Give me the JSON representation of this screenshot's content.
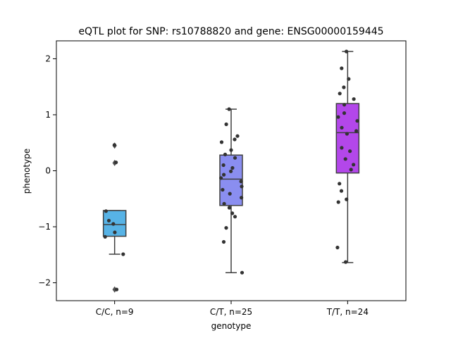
{
  "chart_data": {
    "type": "box",
    "title": "eQTL plot for SNP: rs10788820 and gene: ENSG00000159445",
    "xlabel": "genotype",
    "ylabel": "phenotype",
    "categories": [
      "C/C, n=9",
      "C/T, n=25",
      "T/T, n=24"
    ],
    "ylim": [
      -2.32,
      2.32
    ],
    "yticks": [
      -2,
      -1,
      0,
      1,
      2
    ],
    "grid": false,
    "boxes": [
      {
        "category": "C/C, n=9",
        "color": "#57b3e6",
        "whisker_low": -1.49,
        "q1": -1.17,
        "median": -0.96,
        "q3": -0.71,
        "whisker_high": -0.71,
        "outliers": [
          0.45,
          0.14,
          -2.12
        ]
      },
      {
        "category": "C/T, n=25",
        "color": "#8a8ef0",
        "whisker_low": -1.82,
        "q1": -0.62,
        "median": -0.15,
        "q3": 0.28,
        "whisker_high": 1.1,
        "outliers": []
      },
      {
        "category": "T/T, n=24",
        "color": "#b347ea",
        "whisker_low": -1.64,
        "q1": -0.04,
        "median": 0.68,
        "q3": 1.2,
        "whisker_high": 2.13,
        "outliers": []
      }
    ],
    "points": [
      [
        0.46,
        0.15,
        -0.72,
        -0.89,
        -0.95,
        -1.1,
        -1.18,
        -1.49,
        -2.12
      ],
      [
        1.1,
        0.83,
        0.62,
        0.56,
        0.51,
        0.37,
        0.29,
        0.23,
        0.1,
        0.05,
        -0.01,
        -0.07,
        -0.13,
        -0.19,
        -0.28,
        -0.34,
        -0.41,
        -0.48,
        -0.59,
        -0.66,
        -0.76,
        -0.82,
        -1.02,
        -1.27,
        -1.82
      ],
      [
        2.13,
        1.83,
        1.64,
        1.49,
        1.38,
        1.28,
        1.18,
        1.03,
        0.96,
        0.89,
        0.77,
        0.71,
        0.66,
        0.41,
        0.35,
        0.21,
        0.11,
        0.02,
        -0.23,
        -0.36,
        -0.51,
        -0.56,
        -1.37,
        -1.63
      ]
    ]
  }
}
